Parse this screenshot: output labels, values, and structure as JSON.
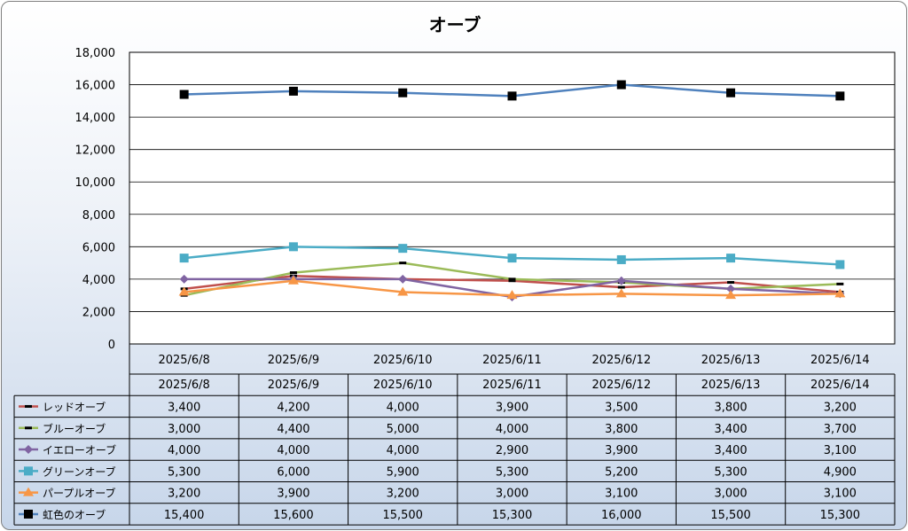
{
  "chart_data": {
    "type": "line",
    "title": "オーブ",
    "xlabel": "",
    "ylabel": "",
    "ylim": [
      0,
      18000
    ],
    "yticks": [
      0,
      2000,
      4000,
      6000,
      8000,
      10000,
      12000,
      14000,
      16000,
      18000
    ],
    "ytick_labels": [
      "0",
      "2,000",
      "4,000",
      "6,000",
      "8,000",
      "10,000",
      "12,000",
      "14,000",
      "16,000",
      "18,000"
    ],
    "categories": [
      "2025/6/8",
      "2025/6/9",
      "2025/6/10",
      "2025/6/11",
      "2025/6/12",
      "2025/6/13",
      "2025/6/14"
    ],
    "grid": true,
    "legend": "data-table",
    "series": [
      {
        "name": "レッドオーブ",
        "color": "#c0504d",
        "marker": "dash",
        "values": [
          3400,
          4200,
          4000,
          3900,
          3500,
          3800,
          3200
        ],
        "labels": [
          "3,400",
          "4,200",
          "4,000",
          "3,900",
          "3,500",
          "3,800",
          "3,200"
        ]
      },
      {
        "name": "ブルーオーブ",
        "color": "#9bbb59",
        "marker": "dash",
        "values": [
          3000,
          4400,
          5000,
          4000,
          3800,
          3400,
          3700
        ],
        "labels": [
          "3,000",
          "4,400",
          "5,000",
          "4,000",
          "3,800",
          "3,400",
          "3,700"
        ]
      },
      {
        "name": "イエローオーブ",
        "color": "#8064a2",
        "marker": "diamond",
        "values": [
          4000,
          4000,
          4000,
          2900,
          3900,
          3400,
          3100
        ],
        "labels": [
          "4,000",
          "4,000",
          "4,000",
          "2,900",
          "3,900",
          "3,400",
          "3,100"
        ]
      },
      {
        "name": "グリーンオーブ",
        "color": "#4bacc6",
        "marker": "square",
        "values": [
          5300,
          6000,
          5900,
          5300,
          5200,
          5300,
          4900
        ],
        "labels": [
          "5,300",
          "6,000",
          "5,900",
          "5,300",
          "5,200",
          "5,300",
          "4,900"
        ]
      },
      {
        "name": "パープルオーブ",
        "color": "#f79646",
        "marker": "triangle",
        "values": [
          3200,
          3900,
          3200,
          3000,
          3100,
          3000,
          3100
        ],
        "labels": [
          "3,200",
          "3,900",
          "3,200",
          "3,000",
          "3,100",
          "3,000",
          "3,100"
        ]
      },
      {
        "name": "虹色のオーブ",
        "color": "#4f81bd",
        "marker": "square-black",
        "values": [
          15400,
          15600,
          15500,
          15300,
          16000,
          15500,
          15300
        ],
        "labels": [
          "15,400",
          "15,600",
          "15,500",
          "15,300",
          "16,000",
          "15,500",
          "15,300"
        ]
      }
    ]
  }
}
